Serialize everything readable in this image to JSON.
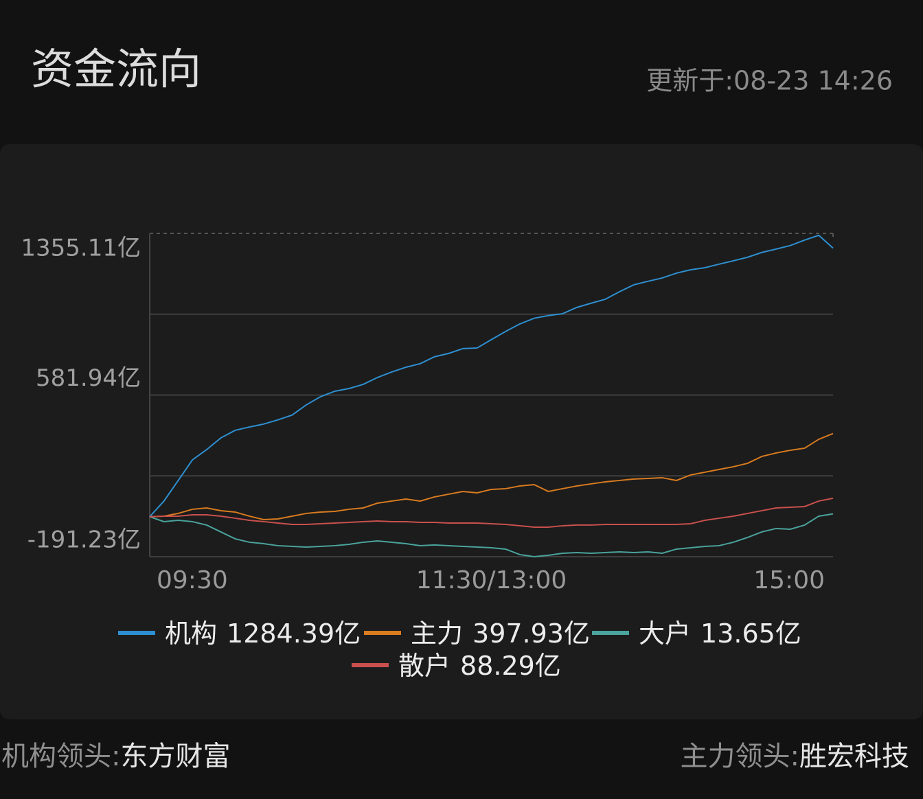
{
  "header": {
    "title": "资金流向",
    "updated": "更新于:08-23 14:26"
  },
  "chart_data": {
    "type": "line",
    "categories": [
      "09:30",
      null,
      null,
      null,
      null,
      null,
      null,
      null,
      null,
      null,
      null,
      null,
      null,
      null,
      null,
      null,
      null,
      null,
      null,
      null,
      null,
      null,
      null,
      null,
      "11:30/13:00",
      null,
      null,
      null,
      null,
      null,
      null,
      null,
      null,
      null,
      null,
      null,
      null,
      null,
      null,
      null,
      null,
      null,
      null,
      null,
      null,
      null,
      null,
      null,
      "15:00"
    ],
    "ylim": [
      -191.23,
      1355.11
    ],
    "yticks": [
      {
        "value": -191.23,
        "label": "-191.23亿"
      },
      {
        "value": 581.94,
        "label": "581.94亿"
      },
      {
        "value": 1355.11,
        "label": "1355.11亿"
      }
    ],
    "ygrid": [
      -191.23,
      195.355,
      581.94,
      968.525,
      1355.11
    ],
    "series": [
      {
        "name": "机构",
        "last_label": "1284.39亿",
        "color": "#2e8fd0",
        "values": [
          0,
          74.9,
          173,
          272,
          321,
          377,
          413,
          429,
          443,
          463,
          486,
          535,
          574,
          600,
          613,
          633,
          666,
          692,
          715,
          732,
          765,
          781,
          804,
          807,
          847,
          886,
          922,
          949,
          962,
          971,
          1001,
          1021,
          1040,
          1076,
          1109,
          1126,
          1142,
          1165,
          1181,
          1191,
          1208,
          1224,
          1241,
          1264,
          1280,
          1297,
          1323,
          1346,
          1284.39
        ]
      },
      {
        "name": "主力",
        "last_label": "397.93亿",
        "color": "#d97b1f",
        "values": [
          0,
          2.6,
          15.8,
          35.5,
          42,
          28.9,
          22.3,
          2.6,
          -13.8,
          -10.5,
          2.6,
          15.8,
          22.3,
          25.6,
          35.5,
          42,
          65,
          74.9,
          84.7,
          74.9,
          94.6,
          107.7,
          120.8,
          114.3,
          130.7,
          134,
          147.1,
          153.6,
          120.8,
          134,
          147.1,
          157,
          166.8,
          173.4,
          180,
          183.2,
          186.5,
          173.4,
          199.7,
          212.8,
          226,
          239,
          255.4,
          288.3,
          304.7,
          317.8,
          327.7,
          370.3,
          397.93
        ]
      },
      {
        "name": "大户",
        "last_label": "13.65亿",
        "color": "#4aa39c",
        "values": [
          0,
          -23.6,
          -17.1,
          -23.6,
          -40,
          -72.9,
          -105.7,
          -122.1,
          -128.7,
          -138.5,
          -141.8,
          -145.1,
          -141.8,
          -138.5,
          -132,
          -122.1,
          -115.6,
          -122.1,
          -128.7,
          -138.5,
          -135.2,
          -138.5,
          -141.8,
          -145.1,
          -148.4,
          -155,
          -181.2,
          -191.1,
          -184.6,
          -174.7,
          -171.4,
          -174.7,
          -171.4,
          -168.1,
          -171.4,
          -168.1,
          -174.7,
          -155,
          -148.4,
          -141.8,
          -138.5,
          -122.1,
          -99.2,
          -72.9,
          -56.5,
          -59.8,
          -40,
          2.6,
          13.65
        ]
      },
      {
        "name": "散户",
        "last_label": "88.29亿",
        "color": "#c9504d",
        "values": [
          0,
          2.6,
          2.6,
          9.2,
          9.2,
          2.6,
          -7.2,
          -17.1,
          -23.6,
          -30.2,
          -36.8,
          -36.8,
          -33.5,
          -30.2,
          -26.9,
          -23.6,
          -20.4,
          -23.6,
          -23.6,
          -26.9,
          -26.9,
          -30.2,
          -30.2,
          -30.2,
          -33.5,
          -36.8,
          -43.3,
          -49.9,
          -49.9,
          -43.3,
          -40,
          -40,
          -36.8,
          -36.8,
          -36.8,
          -36.8,
          -36.8,
          -36.8,
          -33.5,
          -17.1,
          -7.2,
          2.6,
          15.8,
          28.9,
          42,
          45.3,
          48.6,
          74.9,
          88.29
        ]
      }
    ]
  },
  "footer": {
    "left_label": "机构领头:",
    "left_value": "东方财富",
    "right_label": "主力领头:",
    "right_value": "胜宏科技"
  }
}
